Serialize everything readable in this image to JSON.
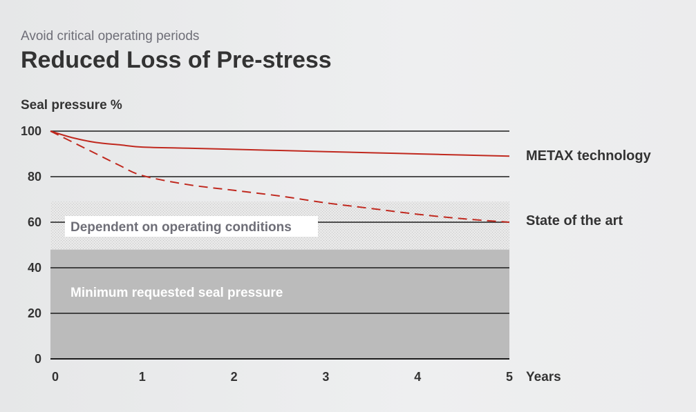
{
  "header": {
    "subtitle": "Avoid critical operating periods",
    "title": "Reduced Loss of Pre-stress"
  },
  "chart_data": {
    "type": "line",
    "ylabel": "Seal pressure %",
    "xlabel": "Years",
    "xlim": [
      0,
      5
    ],
    "ylim": [
      0,
      100
    ],
    "x_ticks": [
      "0",
      "1",
      "2",
      "3",
      "4",
      "5"
    ],
    "y_ticks": [
      "0",
      "20",
      "40",
      "60",
      "80",
      "100"
    ],
    "grid": true,
    "regions": [
      {
        "name": "Minimum requested seal pressure",
        "y_from": 0,
        "y_to": 48,
        "color": "#bbbbbb"
      },
      {
        "name": "Dependent on operating conditions",
        "y_from": 48,
        "y_to": 69,
        "color": "#e3e3e3"
      }
    ],
    "series": [
      {
        "name": "METAX technology",
        "style": "solid",
        "color": "#c0281e",
        "x": [
          0,
          0.25,
          0.5,
          0.75,
          1,
          1.5,
          2,
          2.5,
          3,
          3.5,
          4,
          4.5,
          5
        ],
        "y": [
          100,
          97,
          95,
          94,
          93,
          92.5,
          92,
          91.5,
          91,
          90.5,
          90,
          89.5,
          89
        ]
      },
      {
        "name": "State of the art",
        "style": "dashed",
        "color": "#c0281e",
        "x": [
          0,
          0.25,
          0.5,
          0.75,
          1,
          1.5,
          2,
          2.5,
          3,
          3.5,
          4,
          4.5,
          5
        ],
        "y": [
          100,
          95,
          90,
          85,
          80.5,
          76.5,
          74,
          71.5,
          68.5,
          66,
          63.5,
          61.5,
          60
        ]
      }
    ]
  }
}
